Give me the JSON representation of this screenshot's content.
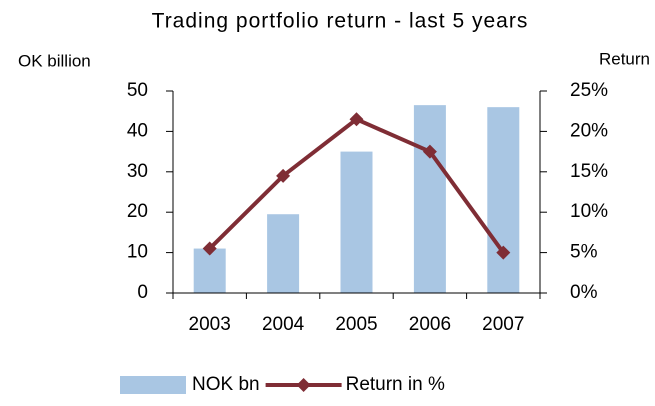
{
  "chart_data": {
    "type": "bar",
    "title": "Trading portfolio return - last 5 years",
    "y_label": "OK billion",
    "y2_label": "Return",
    "categories": [
      "2003",
      "2004",
      "2005",
      "2006",
      "2007"
    ],
    "series": [
      {
        "name": "NOK bn",
        "type": "bar",
        "color": "#a9c6e3",
        "values": [
          11,
          19.5,
          35,
          46.5,
          46
        ]
      },
      {
        "name": "Return in %",
        "type": "line",
        "axis": "y2",
        "color": "#7f2d35",
        "values": [
          5.5,
          14.5,
          21.5,
          17.5,
          5
        ]
      }
    ],
    "ylim": [
      0,
      50
    ],
    "yticks": [
      0,
      10,
      20,
      30,
      40,
      50
    ],
    "y2lim": [
      0,
      25
    ],
    "y2ticks": [
      {
        "value": 0,
        "label": "0%"
      },
      {
        "value": 5,
        "label": "5%"
      },
      {
        "value": 10,
        "label": "10%"
      },
      {
        "value": 15,
        "label": "15%"
      },
      {
        "value": 20,
        "label": "20%"
      },
      {
        "value": 25,
        "label": "25%"
      }
    ],
    "grid": false,
    "legend": "bottom"
  }
}
